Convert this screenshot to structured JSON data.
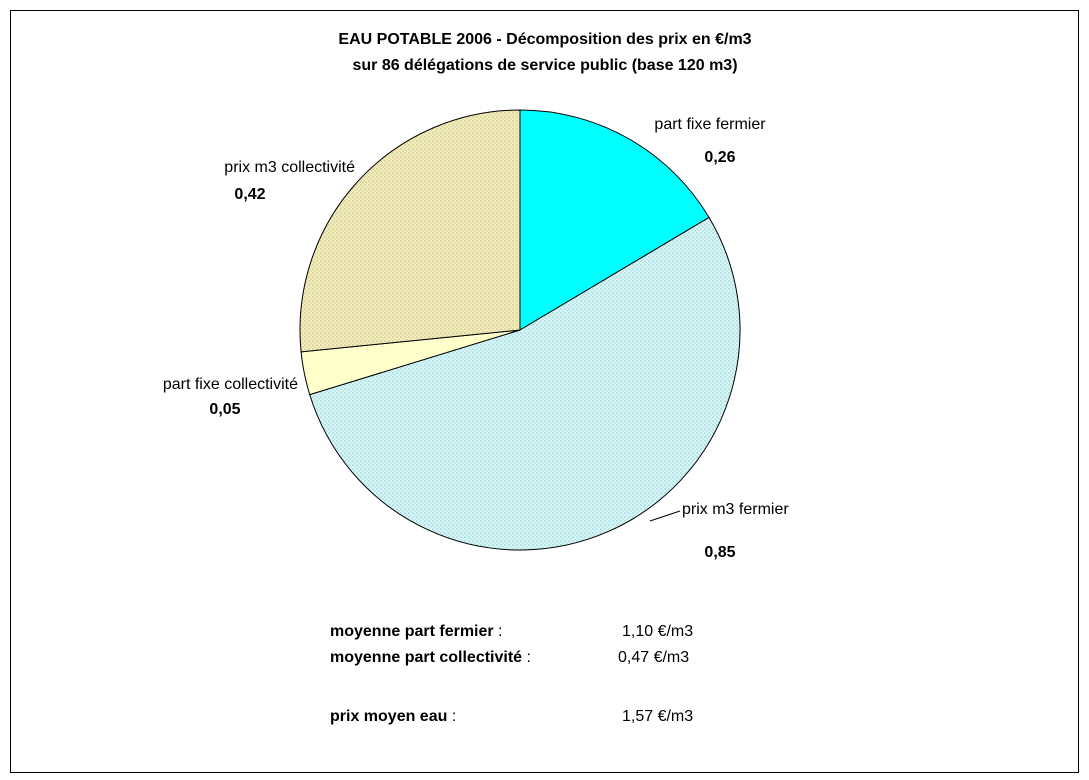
{
  "chart_data": {
    "type": "pie",
    "title": [
      "EAU POTABLE 2006 - Décomposition des prix en €/m3",
      "sur 86 délégations de service public (base 120 m3)"
    ],
    "categories": [
      "part fixe fermier",
      "prix m3 fermier",
      "part fixe collectivité",
      "prix m3 collectivité"
    ],
    "values": [
      0.26,
      0.85,
      0.05,
      0.42
    ],
    "value_labels": [
      "0,26",
      "0,85",
      "0,05",
      "0,42"
    ],
    "colors": [
      "#00ffff",
      "#c8f0f0",
      "#ffffcc",
      "#ece6a6"
    ],
    "notes": [
      {
        "label": "moyenne part fermier",
        "sep": " :",
        "value": "1,10 €/m3"
      },
      {
        "label": "moyenne part collectivité",
        "sep": " :",
        "value": "0,47 €/m3"
      },
      {
        "label": "prix moyen eau",
        "sep": " :",
        "value": "1,57 €/m3"
      }
    ]
  }
}
